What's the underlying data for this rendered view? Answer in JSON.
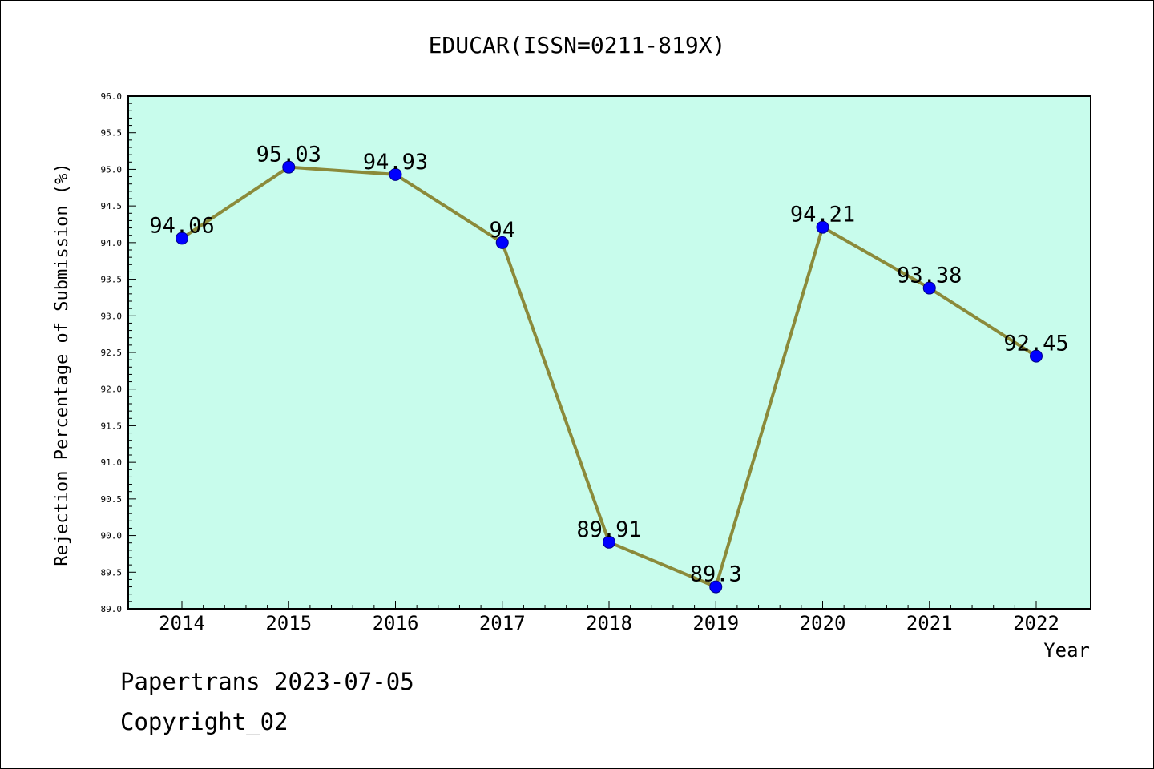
{
  "chart_data": {
    "type": "line",
    "title": "EDUCAR(ISSN=0211-819X)",
    "xlabel": "Year",
    "ylabel": "Rejection Percentage of Submission (%)",
    "categories": [
      "2014",
      "2015",
      "2016",
      "2017",
      "2018",
      "2019",
      "2020",
      "2021",
      "2022"
    ],
    "values": [
      94.06,
      95.03,
      94.93,
      94,
      89.91,
      89.3,
      94.21,
      93.38,
      92.45
    ],
    "data_labels": [
      "94.06",
      "95.03",
      "94.93",
      "94",
      "89.91",
      "89.3",
      "94.21",
      "93.38",
      "92.45"
    ],
    "ylim": [
      89.0,
      96.0
    ],
    "y_ticks": [
      "89.0",
      "89.5",
      "90.0",
      "90.5",
      "91.0",
      "91.5",
      "92.0",
      "92.5",
      "93.0",
      "93.5",
      "94.0",
      "94.5",
      "95.0",
      "95.5",
      "96.0"
    ],
    "grid": false,
    "colors": {
      "plot_background": "#c8fcec",
      "line": "#8b8a3a",
      "marker": "#0000ff"
    }
  },
  "footer": {
    "line1": "Papertrans 2023-07-05",
    "line2": "Copyright_02"
  }
}
